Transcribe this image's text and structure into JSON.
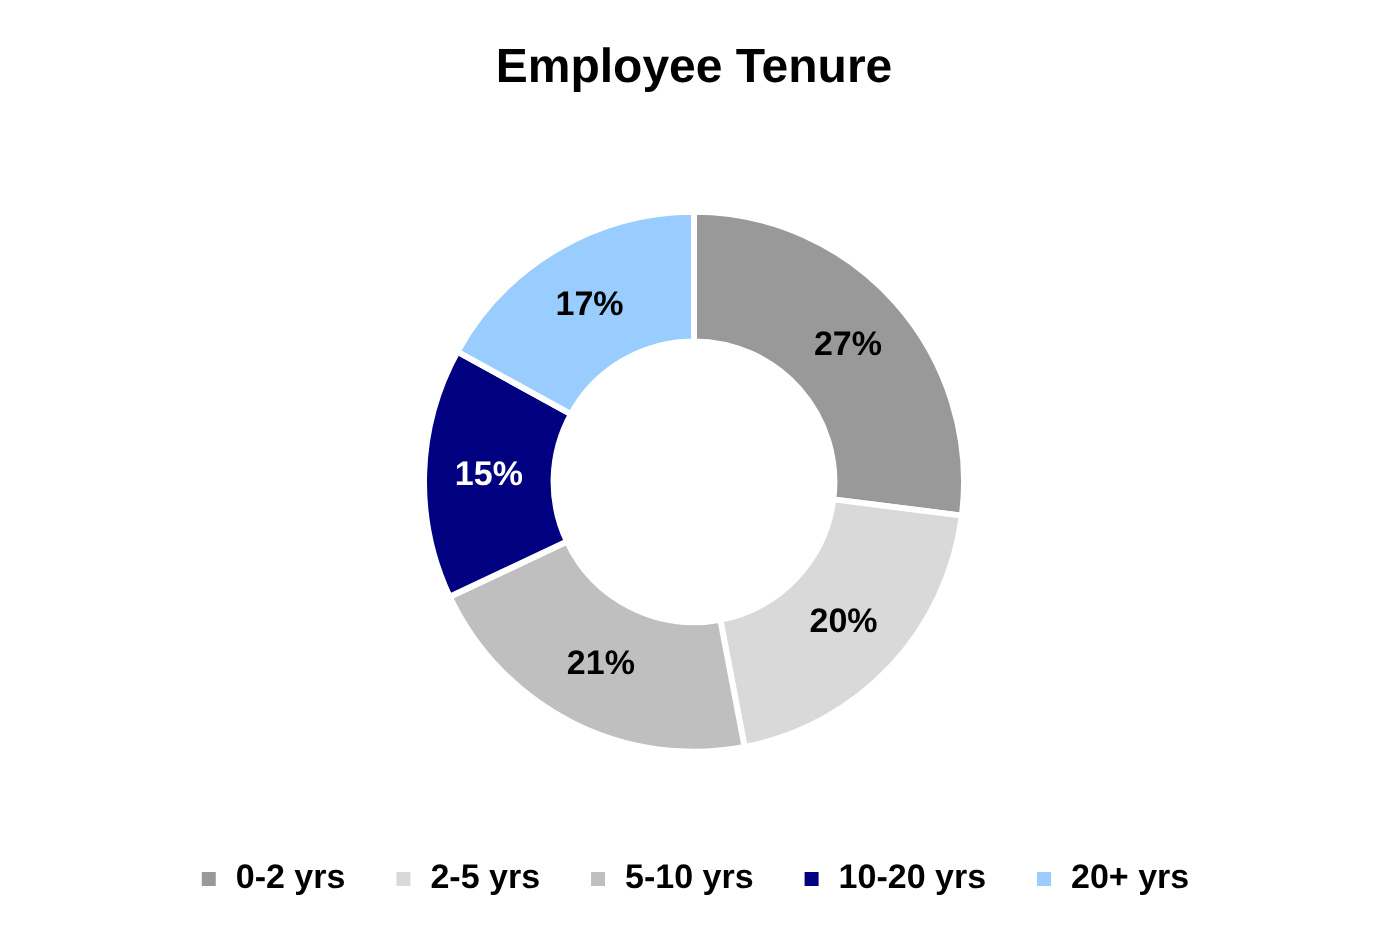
{
  "chart_data": {
    "type": "donut",
    "title": "Employee Tenure",
    "categories": [
      "0-2 yrs",
      "2-5 yrs",
      "5-10 yrs",
      "10-20 yrs",
      "20+ yrs"
    ],
    "values": [
      27,
      20,
      21,
      15,
      17
    ],
    "colors": [
      "#999999",
      "#d9d9d9",
      "#bfbfbf",
      "#000080",
      "#99ccff"
    ],
    "value_labels": [
      "27%",
      "20%",
      "21%",
      "15%",
      "17%"
    ],
    "legend": "bottom"
  }
}
